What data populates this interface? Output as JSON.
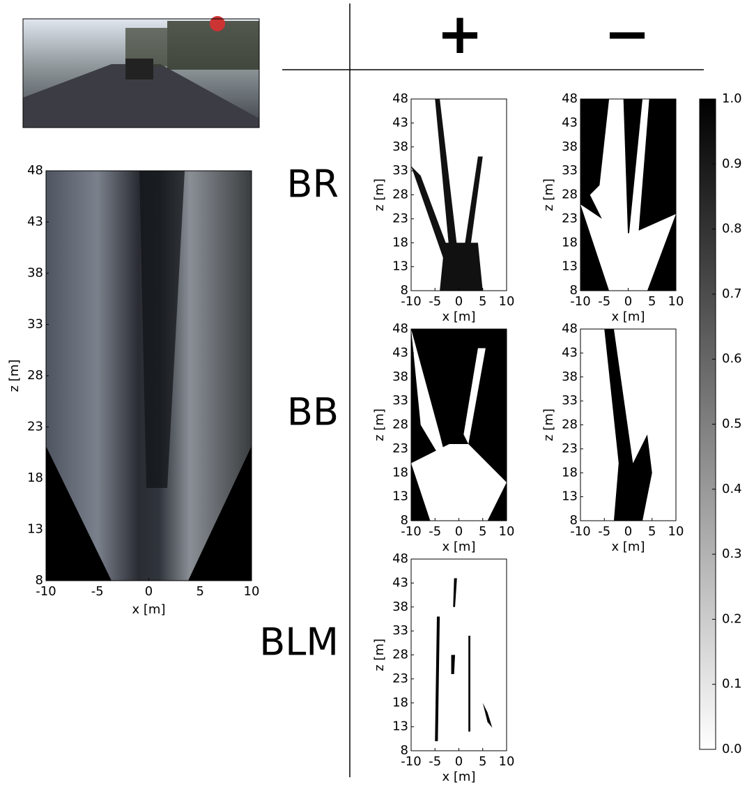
{
  "column_headers": [
    "+",
    "−"
  ],
  "row_labels": [
    "BR",
    "BB",
    "BLM"
  ],
  "axes": {
    "xlabel": "x [m]",
    "ylabel": "z [m]",
    "xlim": [
      -10,
      10
    ],
    "xticks": [
      -10,
      -5,
      0,
      5,
      10
    ],
    "ylim": [
      8,
      48
    ],
    "yticks": [
      8,
      13,
      18,
      23,
      28,
      33,
      38,
      43,
      48
    ]
  },
  "colorbar": {
    "lim": [
      0,
      1
    ],
    "ticks": [
      {
        "value": 0,
        "label": "0.0"
      },
      {
        "value": 0.1,
        "label": "0.1"
      },
      {
        "value": 0.2,
        "label": "0.2"
      },
      {
        "value": 0.3,
        "label": "0.3"
      },
      {
        "value": 0.4,
        "label": "0.4"
      },
      {
        "value": 0.5,
        "label": "0.5"
      },
      {
        "value": 0.6,
        "label": "0.6"
      },
      {
        "value": 0.7,
        "label": "0.7"
      },
      {
        "value": 0.8,
        "label": "0.8"
      },
      {
        "value": 0.9,
        "label": "0.9"
      },
      {
        "value": 1,
        "label": "1.0"
      }
    ]
  }
}
